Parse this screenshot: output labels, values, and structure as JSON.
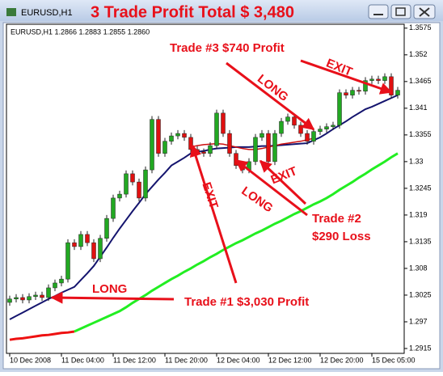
{
  "window_title": "EURUSD,H1",
  "chart_data": {
    "type": "candlestick",
    "title": "3 Trade Profit Total  $ 3,480",
    "chart_label": "EURUSD,H1  1.2866 1.2883 1.2855 1.2860",
    "categories": [
      "10 Dec 2008",
      null,
      null,
      null,
      null,
      null,
      null,
      null,
      "11 Dec 04:00",
      null,
      null,
      null,
      null,
      null,
      null,
      null,
      "11 Dec 12:00",
      null,
      null,
      null,
      null,
      null,
      null,
      null,
      "11 Dec 20:00",
      null,
      null,
      null,
      null,
      null,
      null,
      null,
      "12 Dec 04:00",
      null,
      null,
      null,
      null,
      null,
      null,
      null,
      "12 Dec 12:00",
      null,
      null,
      null,
      null,
      null,
      null,
      null,
      "12 Dec 20:00",
      null,
      null,
      null,
      null,
      null,
      null,
      null,
      "15 Dec 05:00",
      null,
      null,
      null,
      null
    ],
    "open": [
      1.301,
      1.3017,
      1.302,
      1.3015,
      1.3022,
      1.3025,
      1.302,
      1.304,
      1.305,
      1.3058,
      1.3133,
      1.3125,
      1.315,
      1.3133,
      1.31,
      1.3142,
      1.3183,
      1.3225,
      1.3233,
      1.3275,
      1.3258,
      1.3225,
      1.3283,
      1.3387,
      1.3317,
      1.3342,
      1.3353,
      1.3358,
      1.335,
      1.3325,
      1.332,
      1.3317,
      1.3333,
      1.34,
      1.3358,
      1.3317,
      1.3292,
      1.3283,
      1.33,
      1.335,
      1.3358,
      1.33,
      1.3358,
      1.3383,
      1.3392,
      1.3375,
      1.3358,
      1.3342,
      1.3362,
      1.3367,
      1.3372,
      1.3375,
      1.3442,
      1.3437,
      1.3447,
      1.3445,
      1.3467,
      1.347,
      1.3467,
      1.3475,
      1.3437
    ],
    "high": [
      1.3024,
      1.3027,
      1.3027,
      1.3029,
      1.3032,
      1.3032,
      1.3047,
      1.3057,
      1.3065,
      1.314,
      1.314,
      1.3157,
      1.3157,
      1.314,
      1.3149,
      1.319,
      1.3232,
      1.324,
      1.3282,
      1.3282,
      1.3265,
      1.329,
      1.3394,
      1.3394,
      1.3349,
      1.336,
      1.3365,
      1.3365,
      1.3357,
      1.3332,
      1.3327,
      1.334,
      1.3407,
      1.3407,
      1.3365,
      1.3324,
      1.3299,
      1.3307,
      1.3357,
      1.3365,
      1.3365,
      1.3365,
      1.339,
      1.3399,
      1.3399,
      1.3382,
      1.3365,
      1.3369,
      1.3374,
      1.3379,
      1.3382,
      1.3449,
      1.3449,
      1.3454,
      1.3454,
      1.3474,
      1.3477,
      1.3477,
      1.3482,
      1.3482,
      1.3454
    ],
    "low": [
      1.3003,
      1.301,
      1.3008,
      1.3008,
      1.3015,
      1.3013,
      1.3013,
      1.3033,
      1.3043,
      1.3051,
      1.3118,
      1.3118,
      1.3126,
      1.3093,
      1.3093,
      1.3135,
      1.3176,
      1.3218,
      1.3226,
      1.3251,
      1.3218,
      1.3218,
      1.3276,
      1.331,
      1.331,
      1.3335,
      1.3346,
      1.3343,
      1.3318,
      1.3313,
      1.331,
      1.331,
      1.3326,
      1.3351,
      1.331,
      1.3285,
      1.3276,
      1.3276,
      1.3293,
      1.3343,
      1.3293,
      1.3293,
      1.3351,
      1.3376,
      1.3368,
      1.3351,
      1.3335,
      1.3335,
      1.3355,
      1.336,
      1.3365,
      1.3368,
      1.343,
      1.343,
      1.3438,
      1.3438,
      1.346,
      1.346,
      1.346,
      1.343,
      1.343
    ],
    "close": [
      1.3017,
      1.302,
      1.3015,
      1.3022,
      1.3025,
      1.302,
      1.304,
      1.305,
      1.3058,
      1.3133,
      1.3125,
      1.315,
      1.3133,
      1.31,
      1.3142,
      1.3183,
      1.3225,
      1.3233,
      1.3275,
      1.3258,
      1.3225,
      1.3283,
      1.3387,
      1.3317,
      1.3342,
      1.3353,
      1.3358,
      1.335,
      1.3325,
      1.332,
      1.3317,
      1.3333,
      1.34,
      1.3358,
      1.3317,
      1.3292,
      1.3283,
      1.33,
      1.335,
      1.3358,
      1.33,
      1.3358,
      1.3383,
      1.3392,
      1.3375,
      1.3358,
      1.3342,
      1.3362,
      1.3367,
      1.3372,
      1.3375,
      1.3442,
      1.3437,
      1.3447,
      1.3445,
      1.3467,
      1.347,
      1.3467,
      1.3475,
      1.3437,
      1.3447
    ],
    "up_color": "#22a822",
    "down_color": "#e01010",
    "lines": [
      {
        "color": "#ee1111",
        "width": 3,
        "values": [
          1.2933,
          1.2935,
          1.2936,
          1.2938,
          1.294,
          1.2942,
          1.2943,
          1.2945,
          1.2947,
          1.2948,
          1.295,
          null,
          null,
          null,
          null,
          null,
          null,
          null,
          null,
          null,
          null,
          null,
          null,
          null,
          null,
          null,
          null,
          null,
          null,
          null,
          null,
          null,
          null,
          null,
          null,
          null,
          null,
          null,
          null,
          null,
          null,
          null,
          null,
          null,
          null,
          null,
          null,
          null,
          null,
          null,
          null,
          null,
          null,
          null,
          null,
          null,
          null,
          null,
          null,
          null,
          null
        ]
      },
      {
        "color": "#22ee22",
        "width": 3,
        "values": [
          null,
          null,
          null,
          null,
          null,
          null,
          null,
          null,
          null,
          null,
          1.295,
          1.2956,
          1.2962,
          1.2968,
          1.2974,
          1.298,
          1.2986,
          1.2992,
          1.3,
          1.3009,
          1.3017,
          1.3025,
          1.3034,
          1.3042,
          1.305,
          1.3058,
          1.3065,
          1.3073,
          1.308,
          1.3088,
          1.3095,
          1.3103,
          1.311,
          1.3118,
          1.3125,
          1.3132,
          1.3138,
          1.3145,
          1.3152,
          1.3158,
          1.3165,
          1.3172,
          1.3178,
          1.3185,
          1.3192,
          1.3198,
          1.3205,
          1.3212,
          1.3218,
          1.3225,
          1.3233,
          1.3242,
          1.325,
          1.3258,
          1.3267,
          1.3275,
          1.3284,
          1.3292,
          1.33,
          1.3309,
          1.3317
        ]
      },
      {
        "color": "#14146e",
        "width": 2,
        "values": [
          1.2975,
          1.2982,
          1.2989,
          1.2996,
          1.3003,
          1.301,
          1.3017,
          1.3023,
          1.303,
          1.3036,
          1.3042,
          1.3056,
          1.307,
          1.3085,
          1.3104,
          1.3123,
          1.3143,
          1.3162,
          1.318,
          1.3198,
          1.3215,
          1.3233,
          1.3248,
          1.3263,
          1.3277,
          1.3292,
          1.33,
          1.3308,
          1.3317,
          1.332,
          1.3322,
          1.3325,
          1.3327,
          1.3328,
          1.3329,
          1.333,
          1.333,
          1.333,
          1.3331,
          1.3332,
          1.3332,
          1.3333,
          1.3334,
          1.3335,
          1.3336,
          1.3337,
          1.3338,
          1.3344,
          1.335,
          1.3358,
          1.3367,
          1.3375,
          1.3383,
          1.3392,
          1.34,
          1.3408,
          1.3413,
          1.3419,
          1.3425,
          1.3431,
          1.3437
        ]
      },
      {
        "color": "#cc1010",
        "width": 1.5,
        "values": [
          null,
          null,
          null,
          null,
          null,
          null,
          null,
          null,
          null,
          null,
          null,
          null,
          null,
          null,
          null,
          null,
          null,
          null,
          null,
          null,
          null,
          null,
          null,
          null,
          null,
          null,
          null,
          null,
          1.333,
          1.3333,
          1.3335,
          1.3336,
          1.3337,
          1.3336,
          1.3333,
          1.333,
          1.3327,
          1.3325,
          1.3325,
          1.3327,
          1.333,
          1.3333,
          1.3336,
          1.3338,
          1.334,
          1.3342,
          1.3345,
          1.3348,
          null,
          null,
          null,
          null,
          null,
          null,
          null,
          null,
          null,
          null,
          null,
          null,
          null
        ]
      }
    ],
    "ylim": [
      1.2905,
      1.3583
    ],
    "yticks": [
      1.2915,
      1.297,
      1.3025,
      1.308,
      1.3135,
      1.319,
      1.3245,
      1.33,
      1.3355,
      1.341,
      1.3465,
      1.352,
      1.3575
    ],
    "annotations": [
      "Trade #3 $740 Profit",
      "LONG",
      "EXIT",
      "EXIT",
      "LONG",
      "EXIT",
      "Trade #2",
      "$290 Loss",
      "LONG",
      "Trade #1  $3,030 Profit"
    ]
  }
}
